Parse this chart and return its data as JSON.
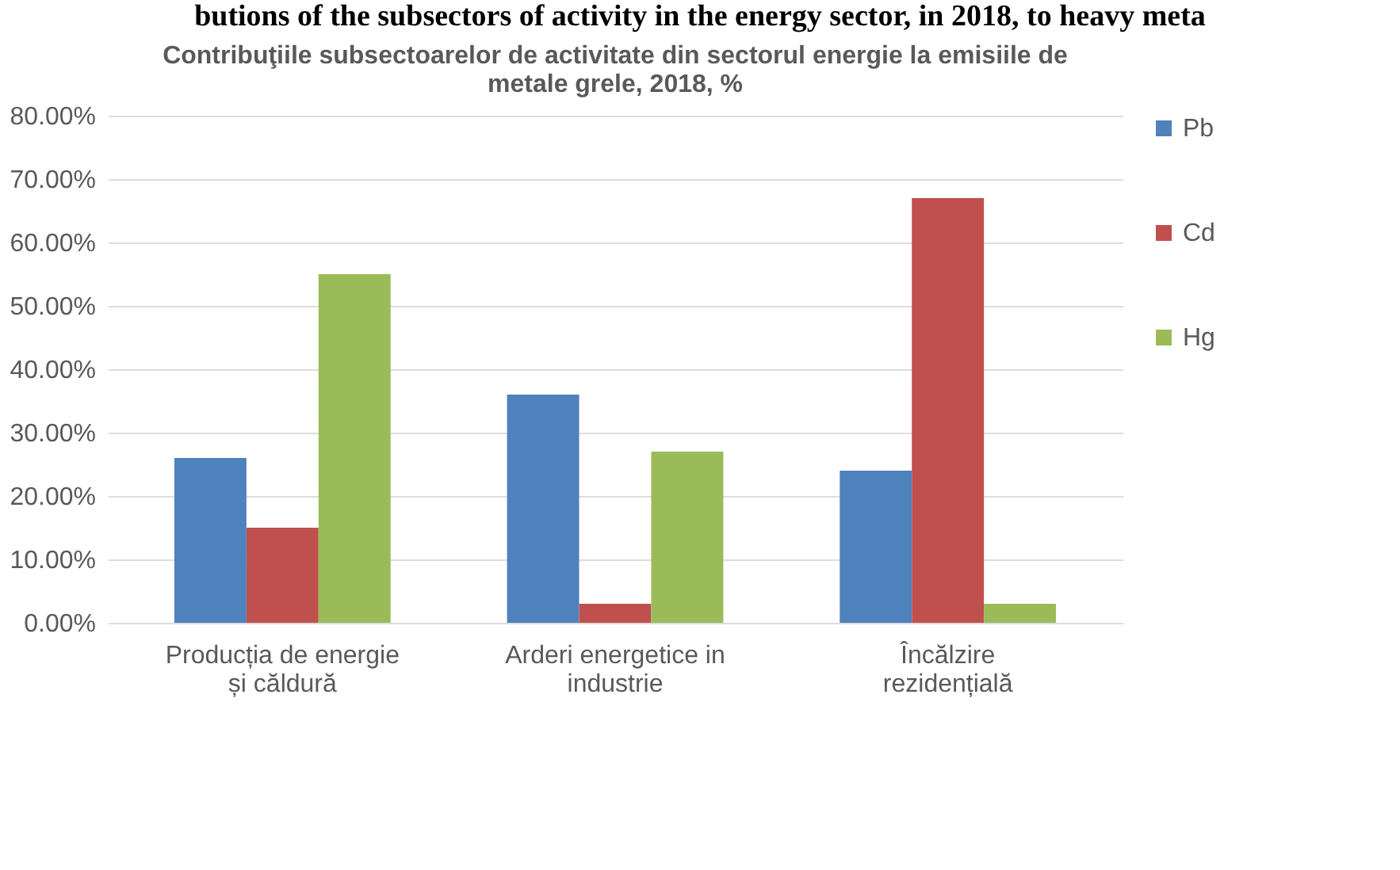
{
  "chart_data": {
    "type": "bar",
    "title": "Contribuţiile subsectoarelor de activitate din sectorul energie la emisiile de metale grele, 2018, %",
    "annotations": [
      "butions of the subsectors of activity in the energy sector, in 2018, to heavy meta"
    ],
    "categories": [
      "Producția de energie și căldură",
      "Arderi energetice in industrie",
      "Încălzire rezidențială"
    ],
    "series": [
      {
        "name": "Pb",
        "color": "#4f81bd",
        "values": [
          26,
          36,
          24
        ]
      },
      {
        "name": "Cd",
        "color": "#c0504d",
        "values": [
          15,
          3,
          67
        ]
      },
      {
        "name": "Hg",
        "color": "#9bbb59",
        "values": [
          55,
          27,
          3
        ]
      }
    ],
    "ylim": [
      0,
      80
    ],
    "yticks": [
      {
        "value": 0,
        "label": "0.00%"
      },
      {
        "value": 10,
        "label": "10.00%"
      },
      {
        "value": 20,
        "label": "20.00%"
      },
      {
        "value": 30,
        "label": "30.00%"
      },
      {
        "value": 40,
        "label": "40.00%"
      },
      {
        "value": 50,
        "label": "50.00%"
      },
      {
        "value": 60,
        "label": "60.00%"
      },
      {
        "value": 70,
        "label": "70.00%"
      },
      {
        "value": 80,
        "label": "80.00%"
      }
    ],
    "grid": "y",
    "legend": "right"
  }
}
